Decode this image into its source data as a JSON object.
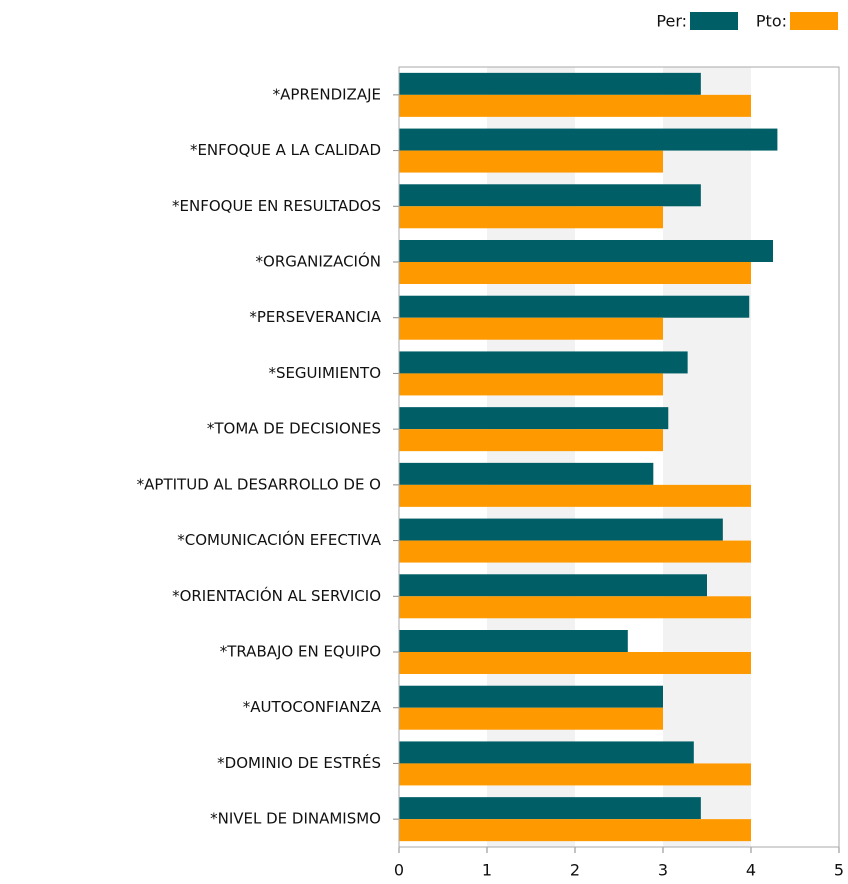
{
  "chart_data": {
    "type": "barh",
    "categories": [
      "*APRENDIZAJE",
      "*ENFOQUE A LA CALIDAD",
      "*ENFOQUE EN RESULTADOS",
      "*ORGANIZACIÓN",
      "*PERSEVERANCIA",
      "*SEGUIMIENTO",
      "*TOMA DE DECISIONES",
      "*APTITUD AL DESARROLLO DE O",
      "*COMUNICACIÓN EFECTIVA",
      "*ORIENTACIÓN AL SERVICIO",
      "*TRABAJO EN EQUIPO",
      "*AUTOCONFIANZA",
      "*DOMINIO DE ESTRÉS",
      "*NIVEL DE DINAMISMO"
    ],
    "series": [
      {
        "name": "Per:",
        "color": "#005f66",
        "values": [
          3.43,
          4.3,
          3.43,
          4.25,
          3.98,
          3.28,
          3.06,
          2.89,
          3.68,
          3.5,
          2.6,
          3.0,
          3.35,
          3.43
        ]
      },
      {
        "name": "Pto:",
        "color": "#ff9900",
        "values": [
          4,
          3,
          3,
          4,
          3,
          3,
          3,
          4,
          4,
          4,
          4,
          3,
          4,
          4
        ]
      }
    ],
    "xlim": [
      0,
      5
    ],
    "xticks": [
      0,
      1,
      2,
      3,
      4,
      5
    ],
    "grid": "bands",
    "legend": "top-right"
  }
}
